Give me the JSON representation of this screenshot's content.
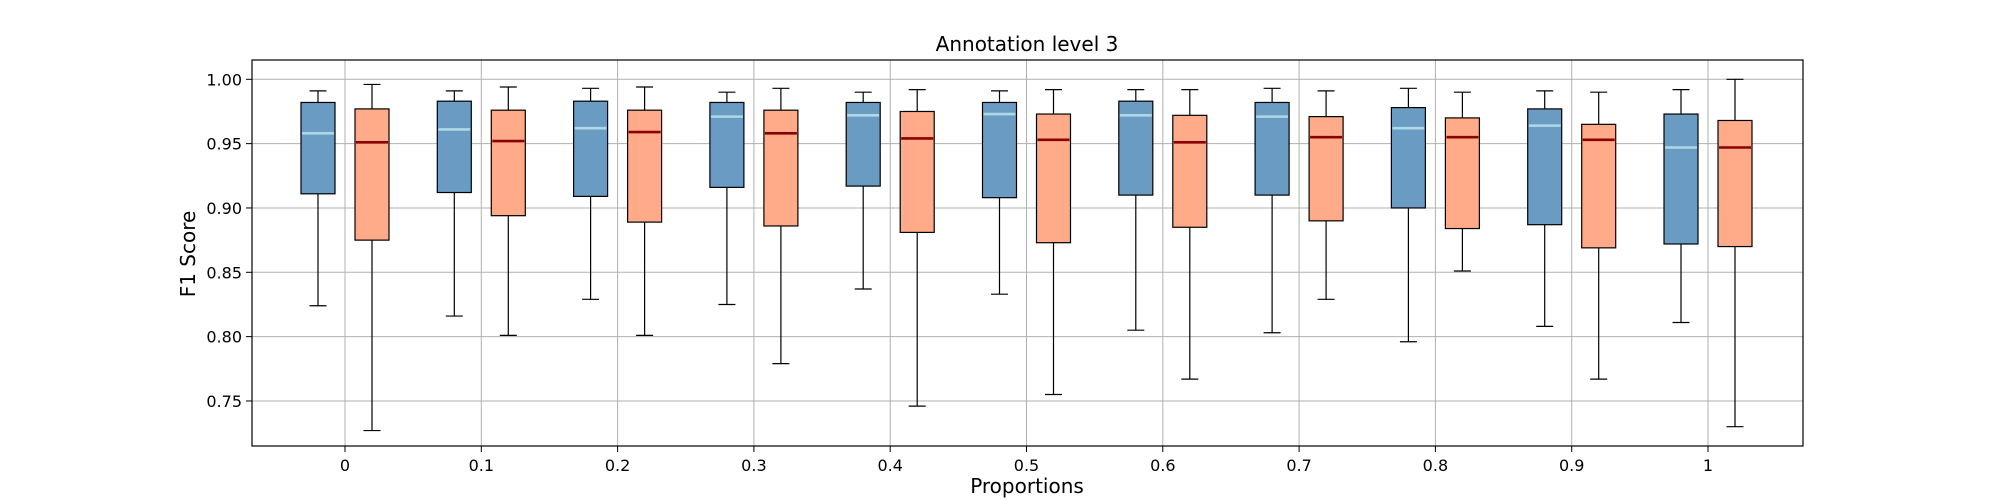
{
  "chart_data": {
    "type": "boxplot",
    "title": "Annotation level 3",
    "xlabel": "Proportions",
    "ylabel": "F1 Score",
    "categories": [
      "0",
      "0.1",
      "0.2",
      "0.3",
      "0.4",
      "0.5",
      "0.6",
      "0.7",
      "0.8",
      "0.9",
      "1"
    ],
    "ylim": [
      0.715,
      1.015
    ],
    "yticks": [
      "0.75",
      "0.80",
      "0.85",
      "0.90",
      "0.95",
      "1.00"
    ],
    "ytick_values": [
      0.75,
      0.8,
      0.85,
      0.9,
      0.95,
      1.0
    ],
    "grid": true,
    "series": [
      {
        "fill": "#6a9bc3",
        "median_color": "#add8e6",
        "boxes": [
          {
            "whislo": 0.824,
            "q1": 0.911,
            "med": 0.958,
            "q3": 0.982,
            "whishi": 0.991
          },
          {
            "whislo": 0.816,
            "q1": 0.912,
            "med": 0.961,
            "q3": 0.983,
            "whishi": 0.991
          },
          {
            "whislo": 0.829,
            "q1": 0.909,
            "med": 0.962,
            "q3": 0.983,
            "whishi": 0.993
          },
          {
            "whislo": 0.825,
            "q1": 0.916,
            "med": 0.971,
            "q3": 0.982,
            "whishi": 0.99
          },
          {
            "whislo": 0.837,
            "q1": 0.917,
            "med": 0.972,
            "q3": 0.982,
            "whishi": 0.99
          },
          {
            "whislo": 0.833,
            "q1": 0.908,
            "med": 0.973,
            "q3": 0.982,
            "whishi": 0.991
          },
          {
            "whislo": 0.805,
            "q1": 0.91,
            "med": 0.972,
            "q3": 0.983,
            "whishi": 0.992
          },
          {
            "whislo": 0.803,
            "q1": 0.91,
            "med": 0.971,
            "q3": 0.982,
            "whishi": 0.993
          },
          {
            "whislo": 0.796,
            "q1": 0.9,
            "med": 0.962,
            "q3": 0.978,
            "whishi": 0.993
          },
          {
            "whislo": 0.808,
            "q1": 0.887,
            "med": 0.964,
            "q3": 0.977,
            "whishi": 0.991
          },
          {
            "whislo": 0.811,
            "q1": 0.872,
            "med": 0.947,
            "q3": 0.973,
            "whishi": 0.992
          }
        ]
      },
      {
        "fill": "#ffaa88",
        "median_color": "#8b0000",
        "boxes": [
          {
            "whislo": 0.727,
            "q1": 0.875,
            "med": 0.951,
            "q3": 0.977,
            "whishi": 0.996
          },
          {
            "whislo": 0.801,
            "q1": 0.894,
            "med": 0.952,
            "q3": 0.976,
            "whishi": 0.994
          },
          {
            "whislo": 0.801,
            "q1": 0.889,
            "med": 0.959,
            "q3": 0.976,
            "whishi": 0.994
          },
          {
            "whislo": 0.779,
            "q1": 0.886,
            "med": 0.958,
            "q3": 0.976,
            "whishi": 0.993
          },
          {
            "whislo": 0.746,
            "q1": 0.881,
            "med": 0.954,
            "q3": 0.975,
            "whishi": 0.992
          },
          {
            "whislo": 0.755,
            "q1": 0.873,
            "med": 0.953,
            "q3": 0.973,
            "whishi": 0.992
          },
          {
            "whislo": 0.767,
            "q1": 0.885,
            "med": 0.951,
            "q3": 0.972,
            "whishi": 0.992
          },
          {
            "whislo": 0.829,
            "q1": 0.89,
            "med": 0.955,
            "q3": 0.971,
            "whishi": 0.991
          },
          {
            "whislo": 0.851,
            "q1": 0.884,
            "med": 0.955,
            "q3": 0.97,
            "whishi": 0.99
          },
          {
            "whislo": 0.767,
            "q1": 0.869,
            "med": 0.953,
            "q3": 0.965,
            "whishi": 0.99
          },
          {
            "whislo": 0.73,
            "q1": 0.87,
            "med": 0.947,
            "q3": 0.968,
            "whishi": 1.0
          }
        ]
      }
    ]
  }
}
